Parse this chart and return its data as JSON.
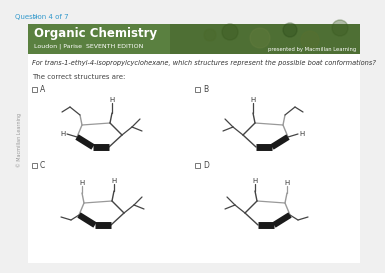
{
  "title_text": "Organic Chemistry",
  "subtitle_text": "Loudon | Parise  SEVENTH EDITION",
  "presented_by": "presented by Macmillan Learning",
  "question_nav": "Question 4 of 7",
  "question_text": "For trans-1-ethyl-4-isopropylcyclohexane, which structures represent the possible boat conformations?",
  "correct_text": "The correct structures are:",
  "copyright_text": "© Macmillan Learning",
  "bg_color": "#f0f0f0",
  "header_bg_left": "#6a9a4a",
  "header_bg_right": "#3a5a2a",
  "nav_color": "#3399cc",
  "body_bg": "#ffffff",
  "line_color": "#444444",
  "bold_color": "#111111",
  "gray_color": "#999999",
  "text_color": "#333333",
  "label_color": "#555555"
}
